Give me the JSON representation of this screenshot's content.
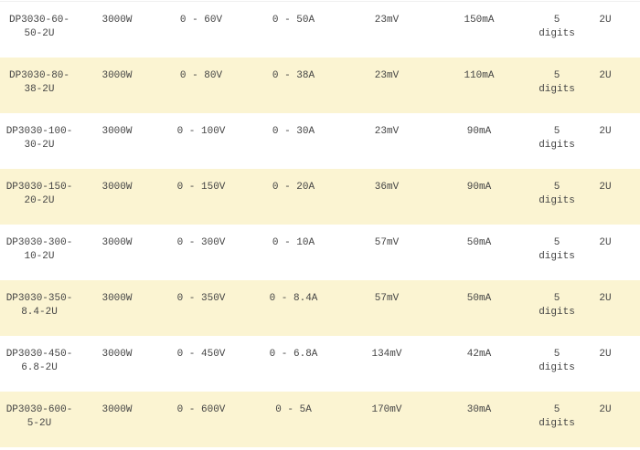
{
  "rows": [
    {
      "model": "DP3030-60-50-2U",
      "model_l1": "DP3030-60-",
      "model_l2": "50-2U",
      "power": "3000W",
      "voltage": "0 - 60V",
      "current": "0 - 50A",
      "ripple_v": "23mV",
      "ripple_i": "150mA",
      "digits_n": "5",
      "digits_l": "digits",
      "size": "2U"
    },
    {
      "model": "DP3030-80-38-2U",
      "model_l1": "DP3030-80-",
      "model_l2": "38-2U",
      "power": "3000W",
      "voltage": "0 - 80V",
      "current": "0 - 38A",
      "ripple_v": "23mV",
      "ripple_i": "110mA",
      "digits_n": "5",
      "digits_l": "digits",
      "size": "2U"
    },
    {
      "model": "DP3030-100-30-2U",
      "model_l1": "DP3030-100-",
      "model_l2": "30-2U",
      "power": "3000W",
      "voltage": "0 - 100V",
      "current": "0 - 30A",
      "ripple_v": "23mV",
      "ripple_i": "90mA",
      "digits_n": "5",
      "digits_l": "digits",
      "size": "2U"
    },
    {
      "model": "DP3030-150-20-2U",
      "model_l1": "DP3030-150-",
      "model_l2": "20-2U",
      "power": "3000W",
      "voltage": "0 - 150V",
      "current": "0 - 20A",
      "ripple_v": "36mV",
      "ripple_i": "90mA",
      "digits_n": "5",
      "digits_l": "digits",
      "size": "2U"
    },
    {
      "model": "DP3030-300-10-2U",
      "model_l1": "DP3030-300-",
      "model_l2": "10-2U",
      "power": "3000W",
      "voltage": "0 - 300V",
      "current": "0 - 10A",
      "ripple_v": "57mV",
      "ripple_i": "50mA",
      "digits_n": "5",
      "digits_l": "digits",
      "size": "2U"
    },
    {
      "model": "DP3030-350-8.4-2U",
      "model_l1": "DP3030-350-",
      "model_l2": "8.4-2U",
      "power": "3000W",
      "voltage": "0 - 350V",
      "current": "0 - 8.4A",
      "ripple_v": "57mV",
      "ripple_i": "50mA",
      "digits_n": "5",
      "digits_l": "digits",
      "size": "2U"
    },
    {
      "model": "DP3030-450-6.8-2U",
      "model_l1": "DP3030-450-",
      "model_l2": "6.8-2U",
      "power": "3000W",
      "voltage": "0 - 450V",
      "current": "0 - 6.8A",
      "ripple_v": "134mV",
      "ripple_i": "42mA",
      "digits_n": "5",
      "digits_l": "digits",
      "size": "2U"
    },
    {
      "model": "DP3030-600-5-2U",
      "model_l1": "DP3030-600-",
      "model_l2": "5-2U",
      "power": "3000W",
      "voltage": "0 - 600V",
      "current": "0 - 5A",
      "ripple_v": "170mV",
      "ripple_i": "30mA",
      "digits_n": "5",
      "digits_l": "digits",
      "size": "2U"
    }
  ],
  "colors": {
    "alt_row": "#fbf4d2",
    "text": "#444444"
  }
}
